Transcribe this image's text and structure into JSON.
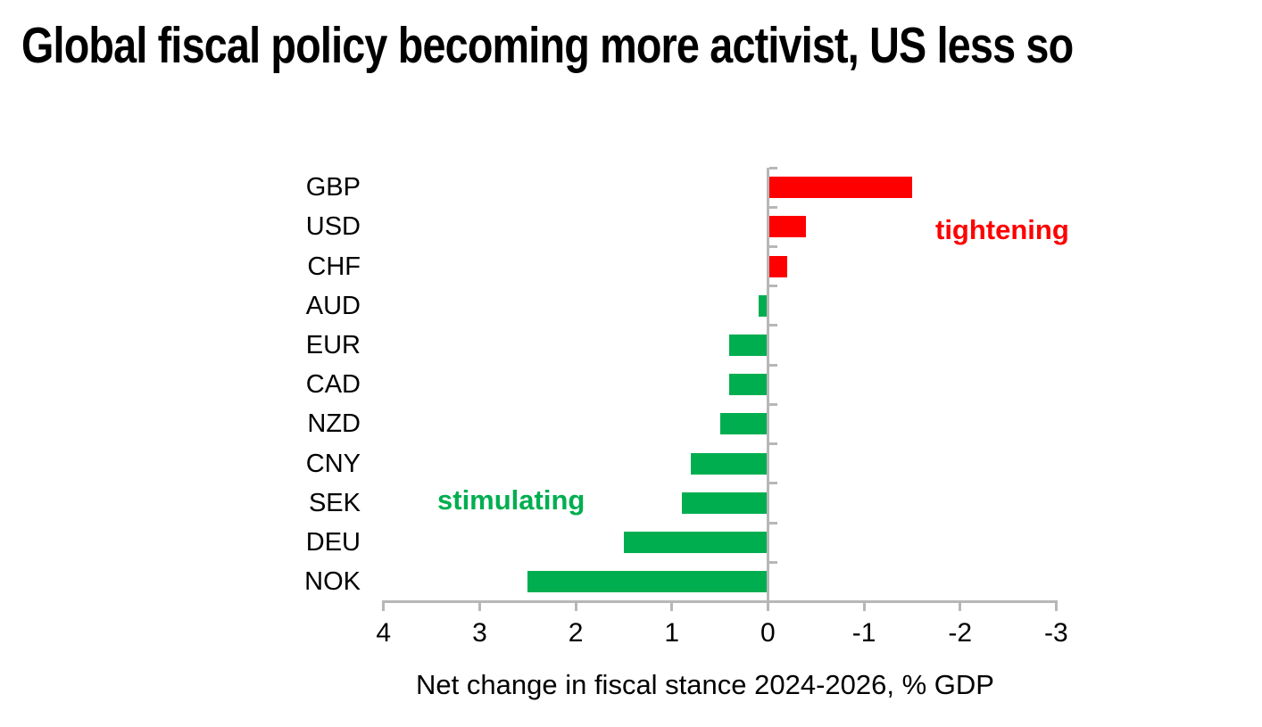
{
  "title": "Global fiscal policy becoming more activist, US less so",
  "chart_data": {
    "type": "bar",
    "orientation": "horizontal",
    "title": "Global fiscal policy becoming more activist, US less so",
    "xlabel": "Net change in fiscal stance 2024-2026, % GDP",
    "categories": [
      "GBP",
      "USD",
      "CHF",
      "AUD",
      "EUR",
      "CAD",
      "NZD",
      "CNY",
      "SEK",
      "DEU",
      "NOK"
    ],
    "values": [
      -1.5,
      -0.4,
      -0.2,
      0.1,
      0.4,
      0.4,
      0.5,
      0.8,
      0.9,
      1.5,
      2.5
    ],
    "xlim": [
      4,
      -3
    ],
    "x_axis_reversed": true,
    "xticks": [
      "4",
      "3",
      "2",
      "1",
      "0",
      "-1",
      "-2",
      "-3"
    ],
    "xtick_values": [
      4,
      3,
      2,
      1,
      0,
      -1,
      -2,
      -3
    ],
    "grid": false,
    "legend": "none",
    "annotations": [
      {
        "text": "tightening",
        "color": "#ff0000",
        "side": "negative"
      },
      {
        "text": "stimulating",
        "color": "#00ae50",
        "side": "positive"
      }
    ],
    "colors": {
      "positive_bar": "#00ae50",
      "negative_bar": "#ff0000",
      "axis": "#b7b7b7",
      "text": "#000000"
    }
  }
}
